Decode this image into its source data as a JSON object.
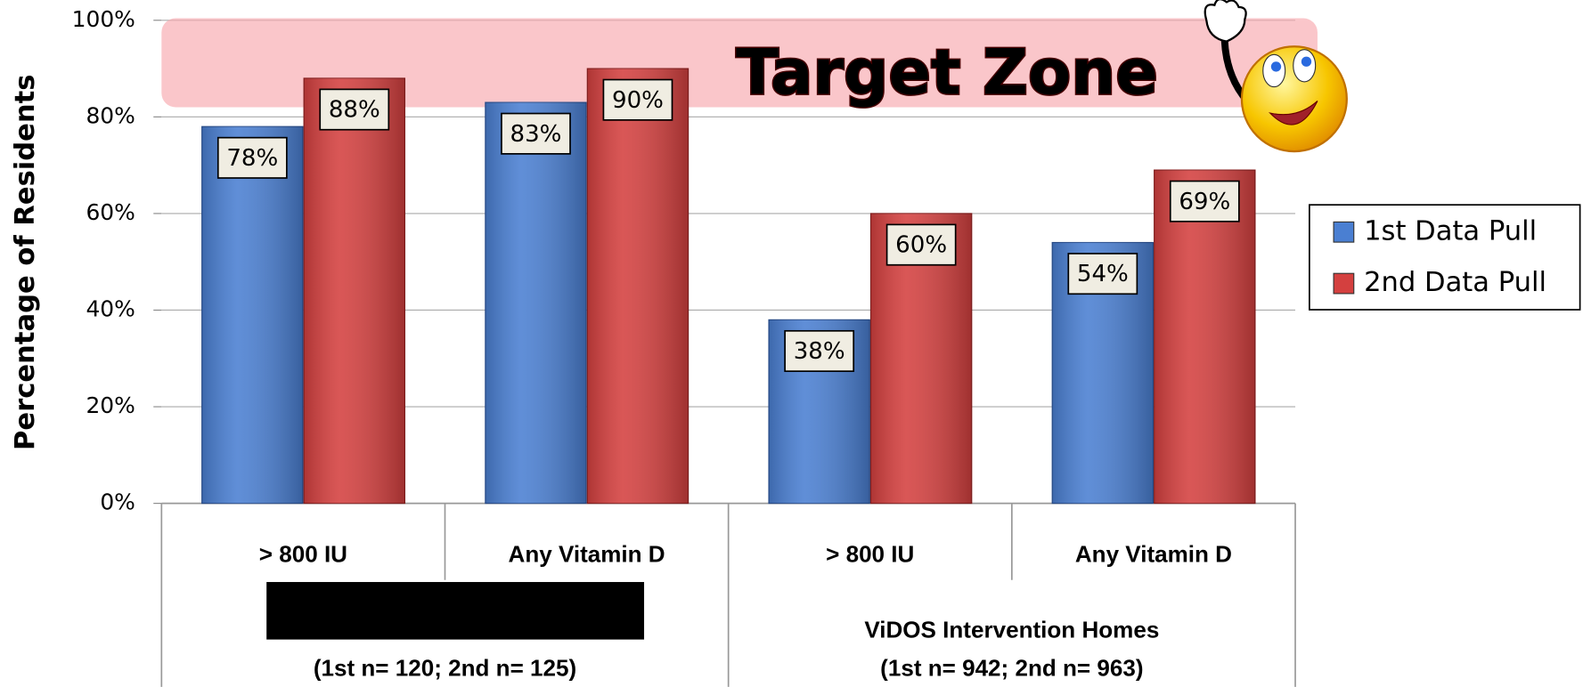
{
  "chart_data": {
    "type": "bar",
    "ylabel": "Percentage of Residents",
    "annotation": "Target Zone",
    "target_zone": [
      82,
      100
    ],
    "categories": [
      "> 800 IU",
      "Any Vitamin D",
      "> 800 IU",
      "Any Vitamin D"
    ],
    "groups": [
      {
        "name": null,
        "sample": "(1st n= 120; 2nd n= 125)"
      },
      {
        "name": "ViDOS Intervention Homes",
        "sample": "(1st n= 942; 2nd n= 963)"
      }
    ],
    "series": [
      {
        "name": "1st Data Pull",
        "color": "#4a7fd2",
        "values": [
          78,
          83,
          38,
          54
        ],
        "value_labels": [
          "78%",
          "83%",
          "38%",
          "54%"
        ]
      },
      {
        "name": "2nd Data Pull",
        "color": "#d4403f",
        "values": [
          88,
          90,
          60,
          69
        ],
        "value_labels": [
          "88%",
          "90%",
          "60%",
          "69%"
        ]
      }
    ],
    "ylim": [
      0,
      100
    ],
    "yticks": [
      {
        "value": 0,
        "label": "0%"
      },
      {
        "value": 20,
        "label": "20%"
      },
      {
        "value": 40,
        "label": "40%"
      },
      {
        "value": 60,
        "label": "60%"
      },
      {
        "value": 80,
        "label": "80%"
      },
      {
        "value": 100,
        "label": "100%"
      }
    ],
    "grid": true,
    "legend": "right"
  }
}
